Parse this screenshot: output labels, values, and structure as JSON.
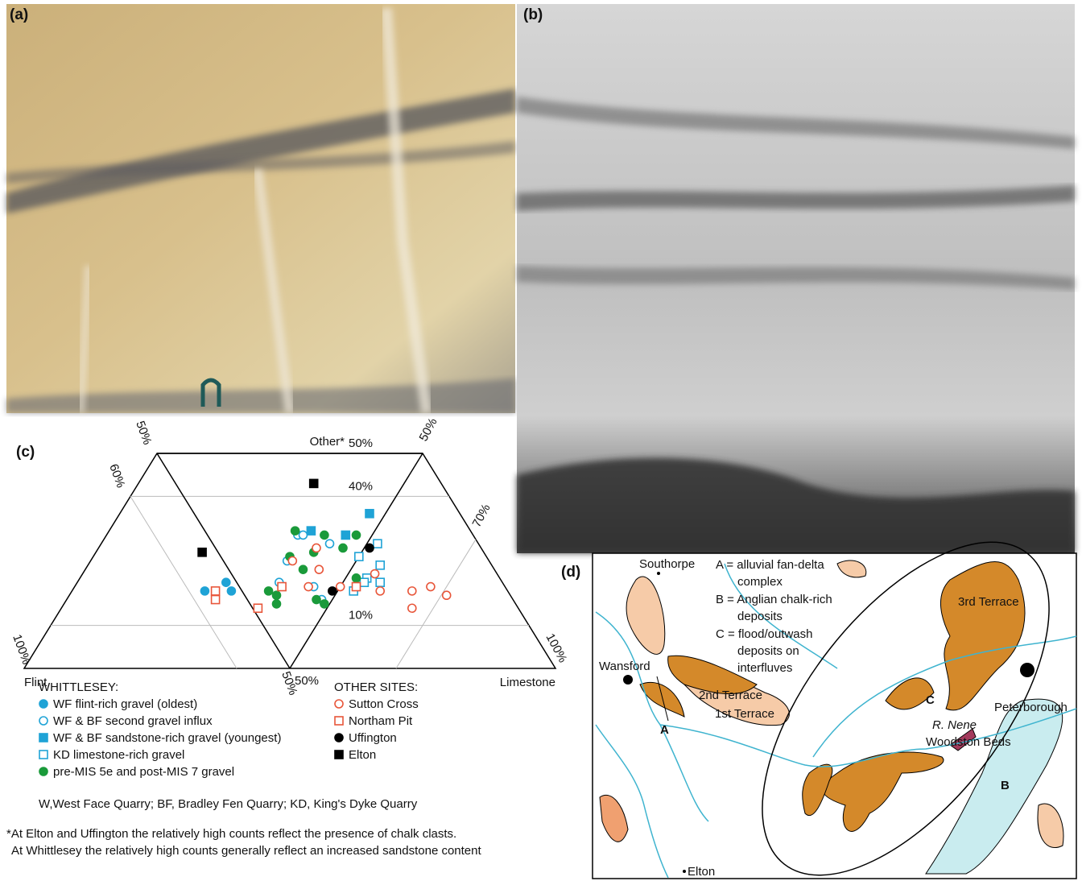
{
  "panels": {
    "a": "(a)",
    "b": "(b)",
    "c": "(c)",
    "d": "(d)"
  },
  "ternary": {
    "apex_label": "Other*",
    "flint_label": "Flint",
    "limestone_label": "Limestone",
    "other_ticks": [
      {
        "value": 50,
        "label": "50%"
      },
      {
        "value": 40,
        "label": "40%"
      },
      {
        "value": 10,
        "label": "10%"
      }
    ],
    "flint_ticks": [
      {
        "value": 50,
        "label": "50%"
      },
      {
        "value": 60,
        "label": "60%"
      },
      {
        "value": 100,
        "label": "100%"
      }
    ],
    "limestone_ticks": [
      {
        "value": 50,
        "label": "50%"
      },
      {
        "value": 70,
        "label": "70%"
      },
      {
        "value": 100,
        "label": "100%"
      }
    ],
    "groups": [
      {
        "heading": "WHITTLESEY:",
        "series": [
          {
            "name": "WF flint-rich gravel (oldest)",
            "color": "#1fa3d6",
            "marker": "circle",
            "filled": true,
            "other": [
              18,
              20,
              18
            ],
            "limestone": [
              25,
              28,
              30
            ]
          },
          {
            "name": "WF & BF second gravel influx",
            "color": "#1fa3d6",
            "marker": "circle",
            "filled": false,
            "other": [
              31,
              31,
              29,
              25,
              20,
              19,
              16
            ],
            "limestone": [
              36,
              37,
              43,
              37,
              38,
              45,
              48
            ]
          },
          {
            "name": "WF & BF sandstone-rich gravel (youngest)",
            "color": "#1fa3d6",
            "marker": "square",
            "filled": true,
            "other": [
              36,
              32,
              31
            ],
            "limestone": [
              47,
              38,
              45
            ]
          },
          {
            "name": "KD limestone-rich gravel",
            "color": "#1fa3d6",
            "marker": "square",
            "filled": false,
            "other": [
              29,
              26,
              24,
              21,
              20,
              20,
              18
            ],
            "limestone": [
              52,
              50,
              55,
              54,
              54,
              57,
              53
            ]
          },
          {
            "name": "pre-MIS 5e and post-MIS 7 gravel",
            "color": "#1a9a3a",
            "marker": "circle",
            "filled": true,
            "other": [
              32,
              31,
              31,
              26,
              27,
              28,
              23,
              18,
              17,
              15,
              16,
              15,
              21
            ],
            "limestone": [
              35,
              41,
              47,
              37,
              41,
              46,
              41,
              37,
              39,
              40,
              47,
              49,
              52
            ]
          }
        ]
      },
      {
        "heading": "OTHER SITES:",
        "series": [
          {
            "name": "Sutton Cross",
            "color": "#e8563a",
            "marker": "circle",
            "filled": false,
            "other": [
              28,
              25,
              23,
              19,
              19,
              22,
              18,
              18,
              19,
              17,
              14
            ],
            "limestone": [
              41,
              38,
              44,
              44,
              50,
              55,
              58,
              64,
              67,
              71,
              66
            ]
          },
          {
            "name": "Northam Pit",
            "color": "#e8563a",
            "marker": "square",
            "filled": false,
            "other": [
              19,
              19,
              18,
              16,
              14
            ],
            "limestone": [
              53,
              39,
              27,
              28,
              37
            ]
          },
          {
            "name": "Uffington",
            "color": "#000000",
            "marker": "circle",
            "filled": true,
            "other": [
              28,
              18
            ],
            "limestone": [
              51,
              49
            ]
          },
          {
            "name": "Elton",
            "color": "#000000",
            "marker": "square",
            "filled": true,
            "other": [
              43,
              27
            ],
            "limestone": [
              33,
              20
            ]
          }
        ]
      }
    ],
    "abbreviations": "W,West Face Quarry; BF, Bradley Fen Quarry; KD, King's Dyke Quarry"
  },
  "footnote": [
    "*At Elton and Uffington the relatively high counts reflect the presence of chalk clasts.",
    "At Whittlesey the relatively high counts generally reflect an increased sandstone content"
  ],
  "map": {
    "key": [
      "A = alluvial fan-delta",
      "complex",
      "B = Anglian chalk-rich",
      "deposits",
      "C = flood/outwash",
      "deposits on",
      "interfluves"
    ],
    "places": {
      "southorpe": "Southorpe",
      "wansford": "Wansford",
      "elton": "Elton",
      "peterborough": "Peterborough"
    },
    "units": {
      "third": "3rd Terrace",
      "second": "2nd Terrace",
      "first": "1st Terrace",
      "woodston": "Woodston Beds",
      "river": "R. Nene"
    },
    "areas": {
      "a": "A",
      "b": "B",
      "c": "C"
    }
  }
}
